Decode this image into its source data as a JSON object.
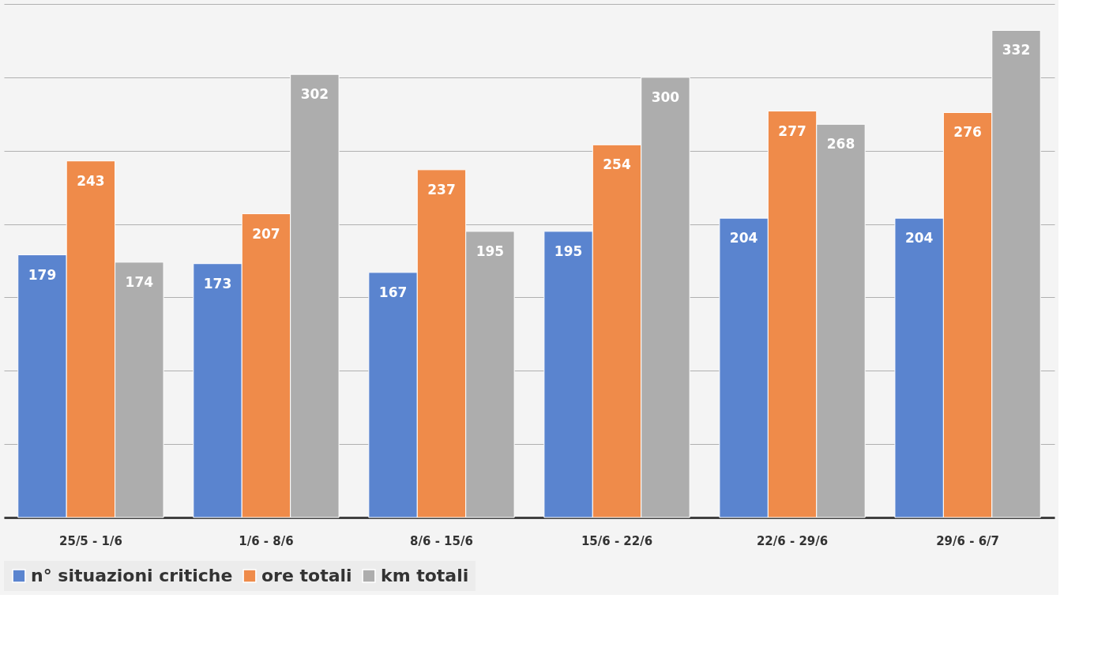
{
  "chart_data": {
    "type": "bar",
    "categories": [
      "25/5 - 1/6",
      "1/6 - 8/6",
      "8/6 - 15/6",
      "15/6 - 22/6",
      "22/6 - 29/6",
      "29/6 - 6/7"
    ],
    "series": [
      {
        "name": "n° situazioni critiche",
        "color": "#5a84cf",
        "values": [
          179,
          173,
          167,
          195,
          204,
          204
        ]
      },
      {
        "name": "ore totali",
        "color": "#ef8b4a",
        "values": [
          243,
          207,
          237,
          254,
          277,
          276
        ]
      },
      {
        "name": "km totali",
        "color": "#adadad",
        "values": [
          174,
          302,
          195,
          300,
          268,
          332
        ]
      }
    ],
    "ylim": [
      0,
      350
    ],
    "yticks": [
      {
        "value": 0,
        "label": null
      },
      {
        "value": 50,
        "label": null
      },
      {
        "value": 100,
        "label": null
      },
      {
        "value": 150,
        "label": null
      },
      {
        "value": 200,
        "label": null
      },
      {
        "value": 250,
        "label": null
      },
      {
        "value": 300,
        "label": null
      },
      {
        "value": 350,
        "label": null
      }
    ],
    "tick_labels": "x",
    "grid": "y",
    "legend": "bottom",
    "data_labels": true
  }
}
